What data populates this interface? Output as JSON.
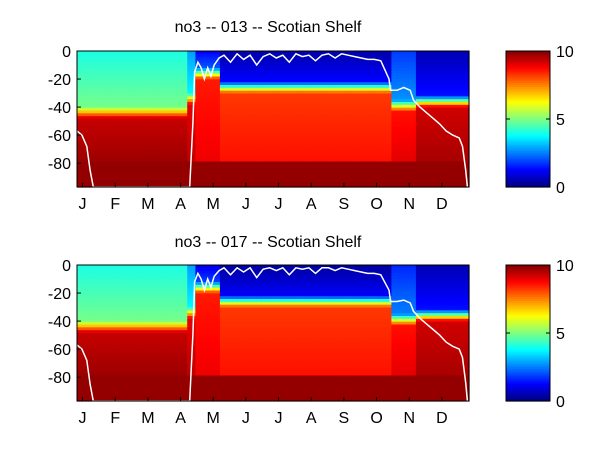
{
  "chart_data": [
    {
      "type": "heatmap",
      "title": "no3 -- 013 -- Scotian Shelf",
      "xlabel": "",
      "ylabel": "",
      "x_tick_labels": [
        "J",
        "F",
        "M",
        "A",
        "M",
        "J",
        "J",
        "A",
        "S",
        "O",
        "N",
        "D"
      ],
      "y_ticks": [
        0,
        -20,
        -40,
        -60,
        -80
      ],
      "y_tick_labels": [
        "0",
        "-20",
        "-40",
        "-60",
        "-80"
      ],
      "ylim": [
        -97,
        0
      ],
      "xlim": [
        0,
        12
      ],
      "colormap": "jet",
      "colorbar": {
        "range": [
          0,
          10
        ],
        "ticks": [
          0,
          5,
          10
        ],
        "tick_labels": [
          "0",
          "5",
          "10"
        ]
      },
      "regimes": [
        {
          "from": 0,
          "to": 3.4,
          "surface_value": 4.0,
          "upper_bottom": -40,
          "deep_value": 9.3,
          "bottom_value": 9.8
        },
        {
          "from": 3.4,
          "to": 3.6,
          "surface_value": 2.8,
          "upper_bottom": -30,
          "deep_value": 9.0,
          "bottom_value": 9.8
        },
        {
          "from": 3.6,
          "to": 4.4,
          "surface_value": 1.2,
          "upper_bottom": -12,
          "deep_value": 8.5,
          "bottom_value": 9.8
        },
        {
          "from": 4.4,
          "to": 9.6,
          "surface_value": 0.4,
          "upper_bottom": -22,
          "deep_value": 8.2,
          "bottom_value": 9.8
        },
        {
          "from": 9.6,
          "to": 10.4,
          "surface_value": 1.8,
          "upper_bottom": -35,
          "deep_value": 8.6,
          "bottom_value": 9.8
        },
        {
          "from": 10.4,
          "to": 12,
          "surface_value": 0.5,
          "upper_bottom": -32,
          "deep_value": 9.2,
          "bottom_value": 9.8
        }
      ],
      "mixed_layer_depth": {
        "x": [
          0,
          0.15,
          0.3,
          0.4,
          0.5,
          3.45,
          3.55,
          3.6,
          3.7,
          3.8,
          3.9,
          4.0,
          4.1,
          4.2,
          4.35,
          4.5,
          4.7,
          4.9,
          5.1,
          5.3,
          5.5,
          5.7,
          5.9,
          6.1,
          6.3,
          6.5,
          6.7,
          6.9,
          7.1,
          7.3,
          7.5,
          7.7,
          7.9,
          8.1,
          8.3,
          8.5,
          8.7,
          8.9,
          9.1,
          9.3,
          9.55,
          9.6,
          9.8,
          10.0,
          10.2,
          10.3,
          10.5,
          10.7,
          10.9,
          11.1,
          11.3,
          11.5,
          11.7,
          11.8,
          11.9,
          11.95
        ],
        "y": [
          -57,
          -60,
          -68,
          -85,
          -97,
          -97,
          -50,
          -15,
          -8,
          -12,
          -20,
          -12,
          -18,
          -10,
          -5,
          -3,
          -8,
          -2,
          -6,
          -3,
          -10,
          -4,
          -2,
          -5,
          -3,
          -8,
          -2,
          -4,
          -3,
          -7,
          -3,
          -2,
          -5,
          -2,
          -3,
          -4,
          -5,
          -6,
          -6,
          -7,
          -20,
          -28,
          -28,
          -26,
          -28,
          -35,
          -40,
          -44,
          -48,
          -52,
          -57,
          -60,
          -62,
          -68,
          -85,
          -97
        ]
      }
    },
    {
      "type": "heatmap",
      "title": "no3 -- 017 -- Scotian Shelf",
      "xlabel": "",
      "ylabel": "",
      "x_tick_labels": [
        "J",
        "F",
        "M",
        "A",
        "M",
        "J",
        "J",
        "A",
        "S",
        "O",
        "N",
        "D"
      ],
      "y_ticks": [
        0,
        -20,
        -40,
        -60,
        -80
      ],
      "y_tick_labels": [
        "0",
        "-20",
        "-40",
        "-60",
        "-80"
      ],
      "ylim": [
        -97,
        0
      ],
      "xlim": [
        0,
        12
      ],
      "colormap": "jet",
      "colorbar": {
        "range": [
          0,
          10
        ],
        "ticks": [
          0,
          5,
          10
        ],
        "tick_labels": [
          "0",
          "5",
          "10"
        ]
      },
      "regimes": [
        {
          "from": 0,
          "to": 3.4,
          "surface_value": 4.0,
          "upper_bottom": -40,
          "deep_value": 9.3,
          "bottom_value": 9.8
        },
        {
          "from": 3.4,
          "to": 3.6,
          "surface_value": 2.8,
          "upper_bottom": -30,
          "deep_value": 9.0,
          "bottom_value": 9.8
        },
        {
          "from": 3.6,
          "to": 4.4,
          "surface_value": 1.0,
          "upper_bottom": -12,
          "deep_value": 8.5,
          "bottom_value": 9.8
        },
        {
          "from": 4.4,
          "to": 9.6,
          "surface_value": 0.3,
          "upper_bottom": -22,
          "deep_value": 8.2,
          "bottom_value": 9.8
        },
        {
          "from": 9.6,
          "to": 10.4,
          "surface_value": 1.6,
          "upper_bottom": -35,
          "deep_value": 8.6,
          "bottom_value": 9.8
        },
        {
          "from": 10.4,
          "to": 12,
          "surface_value": 0.5,
          "upper_bottom": -32,
          "deep_value": 9.2,
          "bottom_value": 9.8
        }
      ],
      "mixed_layer_depth": {
        "x": [
          0,
          0.15,
          0.3,
          0.4,
          0.5,
          3.45,
          3.55,
          3.6,
          3.7,
          3.8,
          3.9,
          4.0,
          4.1,
          4.2,
          4.35,
          4.5,
          4.7,
          4.9,
          5.1,
          5.3,
          5.5,
          5.7,
          5.9,
          6.1,
          6.3,
          6.5,
          6.7,
          6.9,
          7.1,
          7.3,
          7.5,
          7.7,
          7.9,
          8.1,
          8.3,
          8.5,
          8.7,
          8.9,
          9.1,
          9.3,
          9.55,
          9.6,
          9.8,
          10.0,
          10.2,
          10.3,
          10.5,
          10.7,
          10.9,
          11.1,
          11.3,
          11.5,
          11.7,
          11.8,
          11.9,
          11.95
        ],
        "y": [
          -57,
          -60,
          -68,
          -85,
          -97,
          -97,
          -48,
          -12,
          -6,
          -10,
          -18,
          -10,
          -16,
          -8,
          -4,
          -2,
          -7,
          -2,
          -5,
          -2,
          -9,
          -3,
          -2,
          -4,
          -2,
          -7,
          -2,
          -3,
          -2,
          -6,
          -2,
          -2,
          -4,
          -2,
          -3,
          -4,
          -5,
          -6,
          -6,
          -7,
          -18,
          -26,
          -26,
          -25,
          -27,
          -33,
          -38,
          -42,
          -46,
          -50,
          -55,
          -58,
          -60,
          -66,
          -84,
          -97
        ]
      }
    }
  ]
}
